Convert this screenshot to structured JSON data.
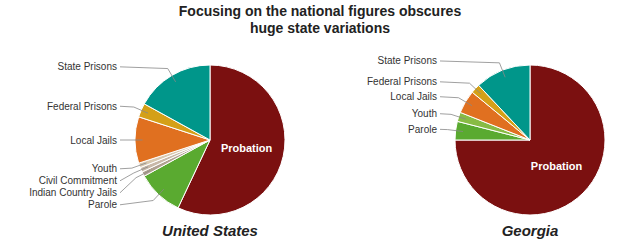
{
  "chart_data": {
    "type": "pie",
    "title": "Focusing on the national figures obscures\nhuge state variations",
    "series": [
      {
        "name": "United States",
        "categories": [
          "Probation",
          "Parole",
          "Indian Country Jails",
          "Civil Commitment",
          "Youth",
          "Local Jails",
          "Federal Prisons",
          "State Prisons"
        ],
        "values": [
          57,
          10,
          1,
          1,
          1,
          10,
          3,
          17
        ],
        "colors": [
          "#7b1010",
          "#5aaa30",
          "#b0a090",
          "#c8b8a8",
          "#d8c8b0",
          "#e07020",
          "#d4a017",
          "#00968a"
        ]
      },
      {
        "name": "Georgia",
        "categories": [
          "Probation",
          "Parole",
          "Youth",
          "Local Jails",
          "Federal Prisons",
          "State Prisons"
        ],
        "values": [
          75,
          4,
          2,
          5,
          2,
          12
        ],
        "colors": [
          "#7b1010",
          "#5aaa30",
          "#88bb44",
          "#e07020",
          "#d4a017",
          "#00968a"
        ]
      }
    ]
  }
}
